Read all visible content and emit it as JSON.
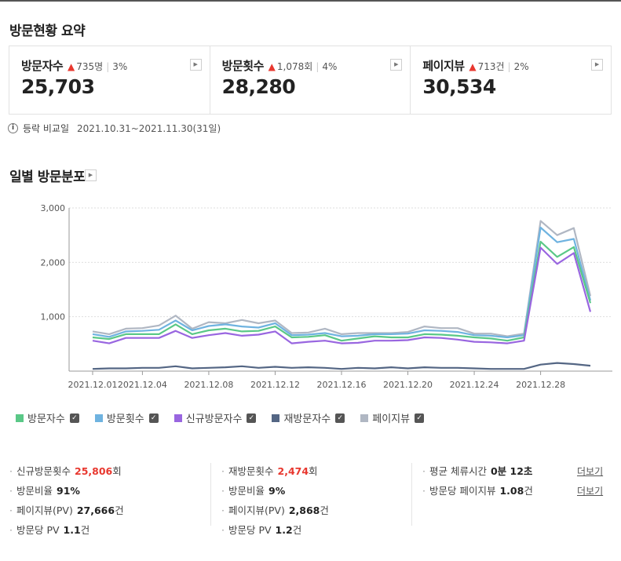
{
  "summary": {
    "title": "방문현황 요약",
    "cards": [
      {
        "label": "방문자수",
        "delta": "735명",
        "pct": "3%",
        "value": "25,703"
      },
      {
        "label": "방문횟수",
        "delta": "1,078회",
        "pct": "4%",
        "value": "28,280"
      },
      {
        "label": "페이지뷰",
        "delta": "713건",
        "pct": "2%",
        "value": "30,534"
      }
    ],
    "compare_label": "등락 비교일",
    "compare_range": "2021.10.31~2021.11.30(31일)"
  },
  "daily": {
    "title": "일별 방문분포"
  },
  "chart_data": {
    "type": "line",
    "title": "일별 방문분포",
    "y_ticks": [
      "3,000",
      "2,000",
      "1,000"
    ],
    "ylim": [
      0,
      3000
    ],
    "x": [
      "12.01",
      "12.02",
      "12.03",
      "12.04",
      "12.05",
      "12.06",
      "12.07",
      "12.08",
      "12.09",
      "12.10",
      "12.11",
      "12.12",
      "12.13",
      "12.14",
      "12.15",
      "12.16",
      "12.17",
      "12.18",
      "12.19",
      "12.20",
      "12.21",
      "12.22",
      "12.23",
      "12.24",
      "12.25",
      "12.26",
      "12.27",
      "12.28",
      "12.29",
      "12.30",
      "12.31"
    ],
    "x_tick_labels": [
      "2021.12.01",
      "2021.12.04",
      "2021.12.08",
      "2021.12.12",
      "2021.12.16",
      "2021.12.20",
      "2021.12.24",
      "2021.12.28"
    ],
    "series": [
      {
        "name": "페이지뷰",
        "color": "#b0b7c3",
        "values": [
          730,
          680,
          780,
          790,
          840,
          1020,
          780,
          900,
          880,
          940,
          880,
          930,
          700,
          710,
          780,
          680,
          700,
          700,
          700,
          720,
          820,
          790,
          790,
          690,
          690,
          640,
          690,
          2760,
          2500,
          2630,
          1380
        ]
      },
      {
        "name": "방문횟수",
        "color": "#6fb3e0",
        "values": [
          680,
          630,
          730,
          740,
          760,
          930,
          750,
          830,
          860,
          820,
          800,
          880,
          660,
          670,
          700,
          640,
          650,
          680,
          680,
          690,
          750,
          740,
          720,
          660,
          650,
          620,
          660,
          2640,
          2370,
          2430,
          1300
        ]
      },
      {
        "name": "방문자수",
        "color": "#5ac887",
        "values": [
          620,
          590,
          680,
          680,
          680,
          860,
          680,
          750,
          780,
          730,
          740,
          820,
          620,
          630,
          660,
          560,
          600,
          640,
          620,
          620,
          680,
          670,
          650,
          620,
          600,
          560,
          620,
          2380,
          2100,
          2280,
          1250
        ]
      },
      {
        "name": "신규방문자수",
        "color": "#9966e0",
        "values": [
          560,
          510,
          610,
          610,
          610,
          740,
          610,
          660,
          700,
          650,
          670,
          730,
          510,
          540,
          560,
          510,
          520,
          560,
          560,
          570,
          620,
          610,
          580,
          540,
          530,
          510,
          560,
          2270,
          1970,
          2170,
          1090
        ]
      },
      {
        "name": "재방문자수",
        "color": "#546684",
        "values": [
          40,
          50,
          50,
          60,
          60,
          90,
          50,
          60,
          70,
          90,
          60,
          80,
          60,
          70,
          60,
          40,
          60,
          50,
          70,
          50,
          70,
          60,
          60,
          50,
          40,
          40,
          40,
          120,
          150,
          130,
          100
        ]
      }
    ]
  },
  "legend": [
    {
      "label": "방문자수",
      "color": "#5ac887"
    },
    {
      "label": "방문횟수",
      "color": "#6fb3e0"
    },
    {
      "label": "신규방문자수",
      "color": "#9966e0"
    },
    {
      "label": "재방문자수",
      "color": "#546684"
    },
    {
      "label": "페이지뷰",
      "color": "#b0b7c3"
    }
  ],
  "stats": {
    "col1": [
      {
        "label": "신규방문횟수",
        "value": "25,806",
        "unit": "회"
      },
      {
        "label": "방문비율",
        "value": "91%",
        "unit": ""
      },
      {
        "label": "페이지뷰(PV)",
        "value": "27,666",
        "unit": "건"
      },
      {
        "label": "방문당 PV",
        "value": "1.1",
        "unit": "건"
      }
    ],
    "col2": [
      {
        "label": "재방문횟수",
        "value": "2,474",
        "unit": "회"
      },
      {
        "label": "방문비율",
        "value": "9%",
        "unit": ""
      },
      {
        "label": "페이지뷰(PV)",
        "value": "2,868",
        "unit": "건"
      },
      {
        "label": "방문당 PV",
        "value": "1.2",
        "unit": "건"
      }
    ],
    "col3": [
      {
        "label": "평균 체류시간",
        "value": "0분 12초",
        "unit": ""
      },
      {
        "label": "방문당 페이지뷰",
        "value": "1.08",
        "unit": "건"
      }
    ],
    "more_label": "더보기"
  }
}
